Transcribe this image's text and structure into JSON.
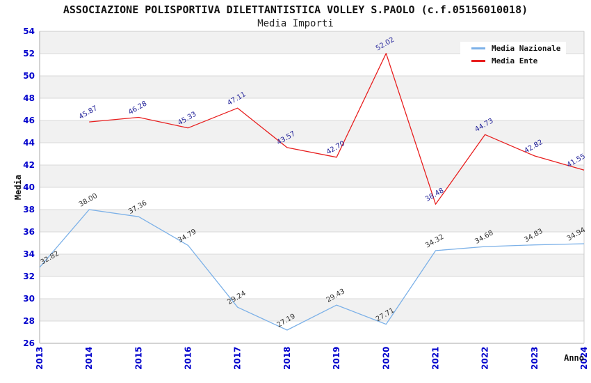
{
  "header": {
    "title": "ASSOCIAZIONE POLISPORTIVA DILETTANTISTICA VOLLEY S.PAOLO (c.f.05156010018)",
    "subtitle": "Media Importi"
  },
  "colors": {
    "axis_tick_blue": "#0000cc",
    "band_gray": "#f1f1f1",
    "gridline": "#d9d9d9",
    "plot_border_light": "#cccccc",
    "plot_border_dark": "#aaaaaa",
    "series_nazionale": "#7cb1e8",
    "series_ente": "#e81f1f",
    "label_nazionale": "#333333",
    "label_ente": "#222299"
  },
  "chart_data": {
    "type": "line",
    "title": "ASSOCIAZIONE POLISPORTIVA DILETTANTISTICA VOLLEY S.PAOLO (c.f.05156010018)",
    "subtitle": "Media Importi",
    "xlabel": "Anno",
    "ylabel": "Media",
    "ylim": [
      26,
      54
    ],
    "ytick_step": 2,
    "grid": "horizontal-bands",
    "legend_position": "top-right",
    "categories": [
      "2013",
      "2014",
      "2015",
      "2016",
      "2017",
      "2018",
      "2019",
      "2020",
      "2021",
      "2022",
      "2023",
      "2024"
    ],
    "series": [
      {
        "name": "Media Nazionale",
        "color": "#7cb1e8",
        "label_color": "#333333",
        "values": [
          32.82,
          38.0,
          37.36,
          34.79,
          29.24,
          27.19,
          29.43,
          27.71,
          34.32,
          34.68,
          34.83,
          34.94
        ]
      },
      {
        "name": "Media Ente",
        "color": "#e81f1f",
        "label_color": "#222299",
        "values": [
          null,
          45.87,
          46.28,
          45.33,
          47.11,
          43.57,
          42.7,
          52.02,
          38.48,
          44.73,
          42.82,
          41.55
        ]
      }
    ]
  }
}
